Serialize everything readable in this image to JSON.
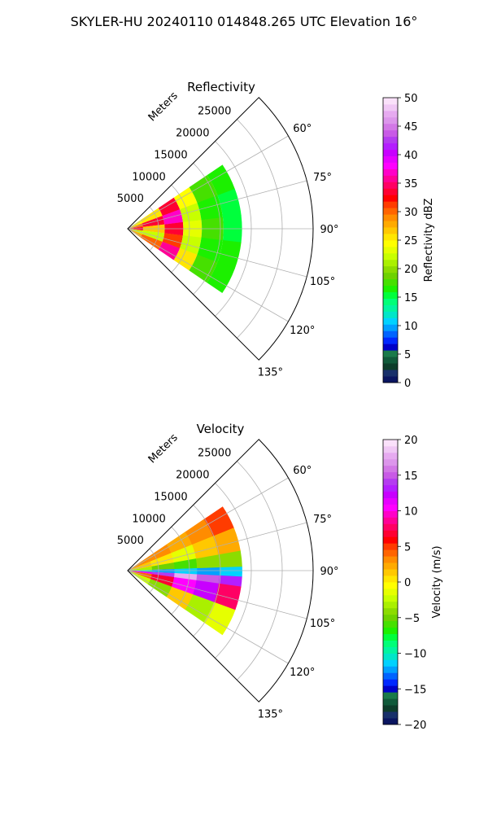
{
  "figure": {
    "suptitle": "SKYLER-HU  20240110  014848.265 UTC Elevation 16°"
  },
  "chart_data": [
    {
      "type": "heatmap",
      "subtype": "radar-ppi-sector",
      "title": "Reflectivity",
      "rlabel": "Meters",
      "r_ticks": [
        5000,
        10000,
        15000,
        20000,
        25000
      ],
      "r_tick_labels": [
        "5000",
        "10000",
        "15000",
        "20000",
        "25000"
      ],
      "r_max": 30000,
      "theta_range_deg": [
        45,
        135
      ],
      "theta_ticks_deg": [
        60,
        75,
        90,
        105,
        120,
        135
      ],
      "theta_tick_labels": [
        "60°",
        "75°",
        "90°",
        "105°",
        "120°",
        "135°"
      ],
      "grid": true,
      "data_extent_m": [
        0,
        18500
      ],
      "colorbar": {
        "label": "Reflectivity dBZ",
        "min": 0,
        "max": 50,
        "ticks": [
          0,
          5,
          10,
          15,
          20,
          25,
          30,
          35,
          40,
          45,
          50
        ],
        "tick_labels": [
          "0",
          "5",
          "10",
          "15",
          "20",
          "25",
          "30",
          "35",
          "40",
          "45",
          "50"
        ],
        "colors": [
          "#0a1560",
          "#18306a",
          "#0d3d2a",
          "#105a3a",
          "#1a7a4a",
          "#0000c8",
          "#0028ff",
          "#0064ff",
          "#00a0ff",
          "#00d2ff",
          "#00e6c8",
          "#00f5a0",
          "#00ff78",
          "#00ff3c",
          "#1cf000",
          "#46e000",
          "#6ed200",
          "#8cdc00",
          "#aaf000",
          "#c8ff00",
          "#e6ff00",
          "#ffff00",
          "#ffe600",
          "#ffc800",
          "#ffaa00",
          "#ff8c00",
          "#ff6400",
          "#ff3c00",
          "#ff0000",
          "#ff0032",
          "#ff0064",
          "#ff0096",
          "#ff00c8",
          "#ff00ff",
          "#e600ff",
          "#c800ff",
          "#b41eff",
          "#b43cf0",
          "#c85ae6",
          "#d278e6",
          "#dc96eb",
          "#e6aaf0",
          "#f0c8f5",
          "#fae1fa"
        ]
      },
      "bands": [
        {
          "r_m": [
            300,
            2500
          ],
          "values": [
            24,
            30,
            34,
            22,
            28
          ]
        },
        {
          "r_m": [
            2500,
            6000
          ],
          "values": [
            26,
            33,
            27,
            22,
            30
          ]
        },
        {
          "r_m": [
            6000,
            9000
          ],
          "values": [
            33,
            37,
            34,
            31,
            36
          ]
        },
        {
          "r_m": [
            9000,
            12000
          ],
          "values": [
            24,
            22,
            23,
            22,
            25
          ]
        },
        {
          "r_m": [
            12000,
            15500
          ],
          "values": [
            18,
            17,
            18,
            16,
            18
          ]
        },
        {
          "r_m": [
            15500,
            18500
          ],
          "values": [
            16,
            15,
            15,
            16,
            16
          ]
        }
      ],
      "band_theta_deg": [
        56,
        124
      ]
    },
    {
      "type": "heatmap",
      "subtype": "radar-ppi-sector",
      "title": "Velocity",
      "rlabel": "Meters",
      "r_ticks": [
        5000,
        10000,
        15000,
        20000,
        25000
      ],
      "r_tick_labels": [
        "5000",
        "10000",
        "15000",
        "20000",
        "25000"
      ],
      "r_max": 30000,
      "theta_range_deg": [
        45,
        135
      ],
      "theta_ticks_deg": [
        60,
        75,
        90,
        105,
        120,
        135
      ],
      "theta_tick_labels": [
        "60°",
        "75°",
        "90°",
        "105°",
        "120°",
        "135°"
      ],
      "grid": true,
      "data_extent_m": [
        0,
        18500
      ],
      "colorbar": {
        "label": "Velocity (m/s)",
        "min": -20,
        "max": 20,
        "ticks": [
          -20,
          -15,
          -10,
          -5,
          0,
          5,
          10,
          15,
          20
        ],
        "tick_labels": [
          "−20",
          "−15",
          "−10",
          "−5",
          "0",
          "5",
          "10",
          "15",
          "20"
        ],
        "colors": [
          "#0a1560",
          "#18306a",
          "#0d3d2a",
          "#105a3a",
          "#1a7a4a",
          "#0000c8",
          "#0028ff",
          "#0064ff",
          "#00a0ff",
          "#00d2ff",
          "#00e6c8",
          "#00f5a0",
          "#00ff78",
          "#00ff3c",
          "#1cf000",
          "#46e000",
          "#6ed200",
          "#8cdc00",
          "#aaf000",
          "#c8ff00",
          "#e6ff00",
          "#ffff00",
          "#ffe600",
          "#ffc800",
          "#ffaa00",
          "#ff8c00",
          "#ff6400",
          "#ff3c00",
          "#ff0000",
          "#ff0032",
          "#ff0064",
          "#ff0096",
          "#ff00c8",
          "#ff00ff",
          "#e600ff",
          "#c800ff",
          "#b41eff",
          "#b43cf0",
          "#c85ae6",
          "#d278e6",
          "#dc96eb",
          "#e6aaf0",
          "#f0c8f5",
          "#fae1fa"
        ]
      },
      "bands": [
        {
          "theta_deg": [
            56,
            68
          ],
          "values": [
            3,
            3,
            2,
            3,
            5
          ]
        },
        {
          "theta_deg": [
            68,
            80
          ],
          "values": [
            1,
            0,
            -1,
            1,
            2
          ]
        },
        {
          "theta_deg": [
            80,
            88
          ],
          "values": [
            -3,
            -5,
            -6,
            -4,
            -4
          ]
        },
        {
          "theta_deg": [
            88,
            93
          ],
          "values": [
            -10,
            -12,
            -11,
            -12,
            -11
          ]
        },
        {
          "theta_deg": [
            93,
            98
          ],
          "values": [
            11,
            14,
            18,
            15,
            13
          ]
        },
        {
          "theta_deg": [
            98,
            110
          ],
          "values": [
            4,
            7,
            10,
            12,
            8
          ]
        },
        {
          "theta_deg": [
            110,
            124
          ],
          "values": [
            -2,
            -4,
            1,
            -3,
            -1
          ]
        }
      ],
      "band_r_m": [
        300,
        18500
      ]
    }
  ]
}
